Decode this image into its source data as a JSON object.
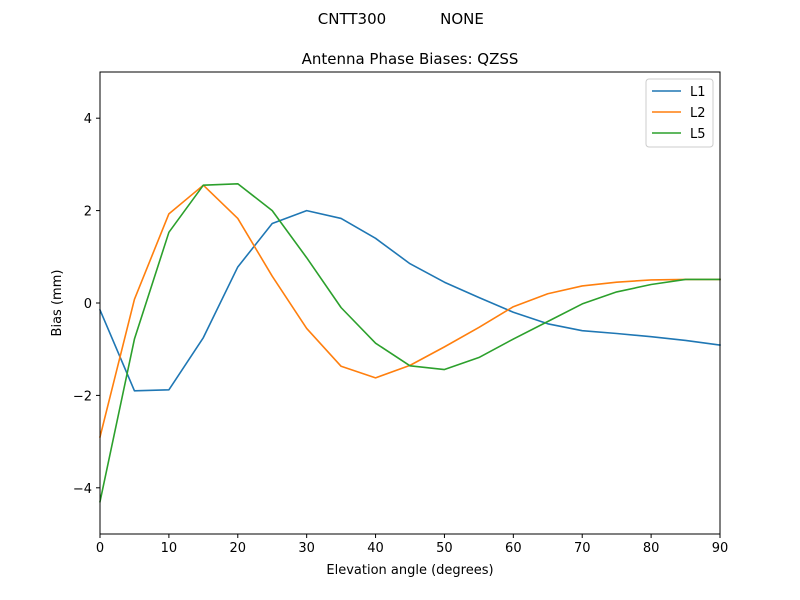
{
  "figure": {
    "header_left": "CNTT300",
    "header_right": "NONE"
  },
  "chart_data": {
    "type": "line",
    "title": "Antenna Phase Biases: QZSS",
    "xlabel": "Elevation angle (degrees)",
    "ylabel": "Bias (mm)",
    "xlim": [
      0,
      90
    ],
    "ylim": [
      -5,
      5
    ],
    "xticks": [
      0,
      10,
      20,
      30,
      40,
      50,
      60,
      70,
      80,
      90
    ],
    "yticks": [
      -4,
      -2,
      0,
      2,
      4
    ],
    "grid": false,
    "legend_position": "top-right",
    "x": [
      0,
      5,
      10,
      15,
      20,
      25,
      30,
      35,
      40,
      45,
      50,
      55,
      60,
      65,
      70,
      75,
      80,
      85,
      90
    ],
    "series": [
      {
        "name": "L1",
        "color": "#1f77b4",
        "values": [
          -0.15,
          -1.9,
          -1.88,
          -0.75,
          0.78,
          1.72,
          2.0,
          1.83,
          1.4,
          0.85,
          0.45,
          0.12,
          -0.2,
          -0.45,
          -0.6,
          -0.66,
          -0.73,
          -0.81,
          -0.91
        ]
      },
      {
        "name": "L2",
        "color": "#ff7f0e",
        "values": [
          -2.9,
          0.08,
          1.93,
          2.55,
          1.83,
          0.58,
          -0.55,
          -1.37,
          -1.62,
          -1.35,
          -0.95,
          -0.53,
          -0.08,
          0.2,
          0.37,
          0.45,
          0.5,
          0.51,
          0.51
        ]
      },
      {
        "name": "L5",
        "color": "#2ca02c",
        "values": [
          -4.3,
          -0.78,
          1.53,
          2.55,
          2.58,
          2.0,
          0.98,
          -0.1,
          -0.87,
          -1.36,
          -1.44,
          -1.18,
          -0.78,
          -0.4,
          -0.02,
          0.24,
          0.4,
          0.51,
          0.51
        ]
      }
    ]
  }
}
